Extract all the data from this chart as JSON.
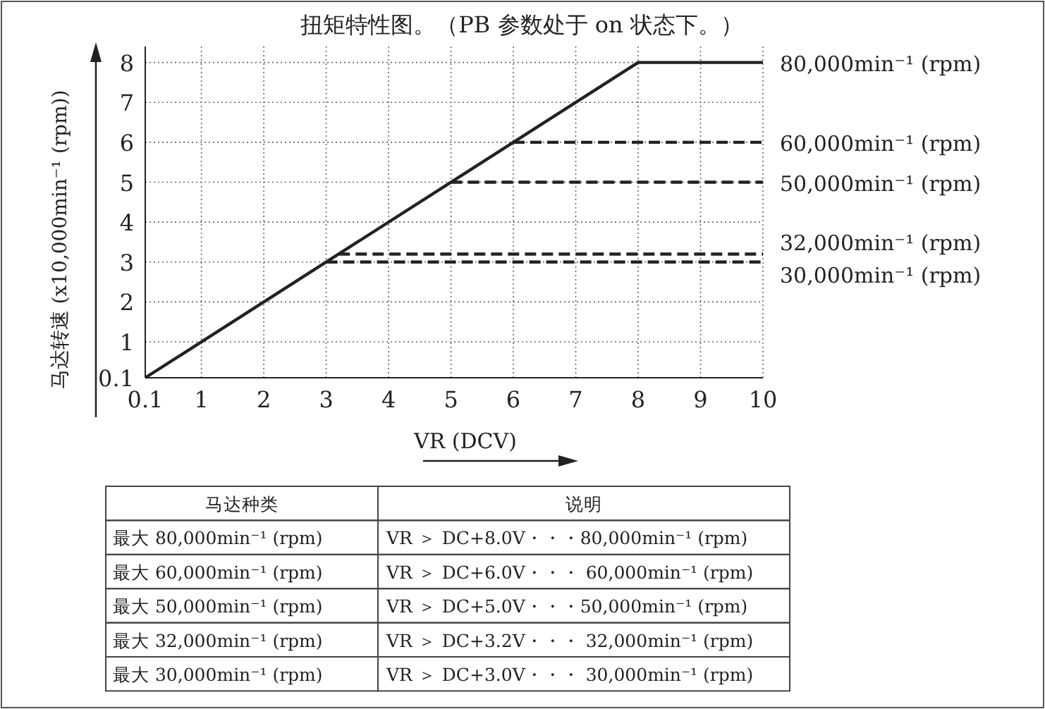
{
  "chart_data": {
    "type": "line",
    "title": "扭矩特性图。（PB 参数处于 on 状态下。）",
    "xlabel": "VR (DCV)",
    "ylabel": "马达转速 (x10,000min⁻¹ (rpm))",
    "xlim": [
      0.1,
      10
    ],
    "ylim": [
      0.1,
      8.4
    ],
    "xticks": [
      0.1,
      1,
      2,
      3,
      4,
      5,
      6,
      7,
      8,
      9,
      10
    ],
    "yticks": [
      0.1,
      1,
      2,
      3,
      4,
      5,
      6,
      7,
      8
    ],
    "grid": true,
    "legend": false,
    "series": [
      {
        "name": "80,000min⁻¹ (rpm)",
        "color": "#222222",
        "line_style": "solid",
        "x": [
          0.1,
          8,
          10
        ],
        "values": [
          0.1,
          8,
          8
        ]
      },
      {
        "name": "60,000min⁻¹ (rpm)",
        "color": "#222222",
        "line_style": "dashed",
        "x": [
          6,
          10
        ],
        "values": [
          6,
          6
        ]
      },
      {
        "name": "50,000min⁻¹ (rpm)",
        "color": "#222222",
        "line_style": "dashed",
        "x": [
          5,
          10
        ],
        "values": [
          5,
          5
        ]
      },
      {
        "name": "32,000min⁻¹ (rpm)",
        "color": "#222222",
        "line_style": "dashed",
        "x": [
          3.2,
          10
        ],
        "values": [
          3.2,
          3.2
        ]
      },
      {
        "name": "30,000min⁻¹ (rpm)",
        "color": "#222222",
        "line_style": "dashed",
        "x": [
          3,
          10
        ],
        "values": [
          3,
          3
        ]
      }
    ],
    "annotations": [
      "马达种类",
      "说明",
      "最大 80,000min⁻¹ (rpm)",
      "VR ＞ DC+8.0V・・・80,000min⁻¹ (rpm)",
      "最大 60,000min⁻¹ (rpm)",
      "VR ＞ DC+6.0V・・・ 60,000min⁻¹ (rpm)",
      "最大 50,000min⁻¹ (rpm)",
      "VR ＞ DC+5.0V・・・50,000min⁻¹ (rpm)",
      "最大 32,000min⁻¹ (rpm)",
      "VR ＞ DC+3.2V・・・ 32,000min⁻¹ (rpm)",
      "最大 30,000min⁻¹ (rpm)",
      "VR ＞ DC+3.0V・・・ 30,000min⁻¹ (rpm)"
    ]
  }
}
